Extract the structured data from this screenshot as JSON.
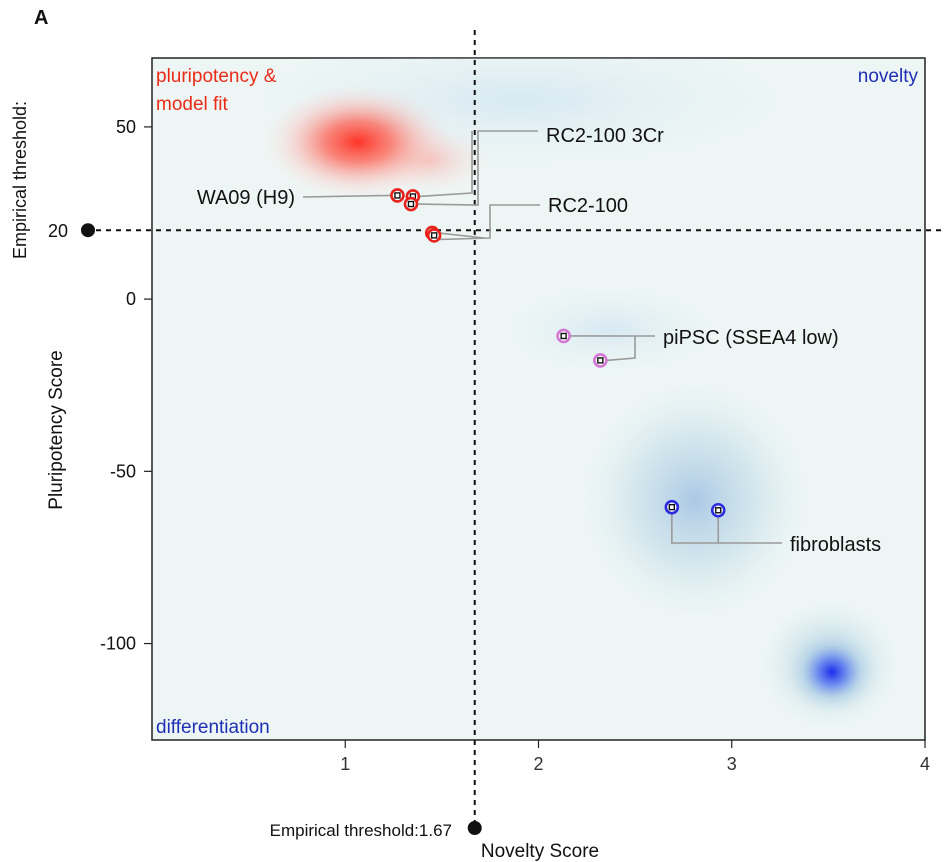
{
  "panel_label": "A",
  "colors": {
    "plot_bg": "#eef6f5",
    "pluripotent": "#e8221b",
    "novel": "#2a2ae0",
    "pipsc": "#d477d4",
    "leader": "#9a9a9a",
    "text": "#111111"
  },
  "chart_data": {
    "type": "scatter",
    "title": "",
    "xlabel": "Novelty Score",
    "ylabel": "Pluripotency  Score",
    "xlim": [
      0,
      4
    ],
    "ylim": [
      -128,
      70
    ],
    "xticks": [
      "1",
      "2",
      "3",
      "4"
    ],
    "yticks": [
      "50",
      "0",
      "-50",
      "-100"
    ],
    "grid": false,
    "thresholds": {
      "x": {
        "value": 1.67,
        "label": "Empirical threshold:1.67"
      },
      "y": {
        "value": 20,
        "label": "Empirical threshold:",
        "tick": "20"
      }
    },
    "quadrant_labels": {
      "top_left": "pluripotency &\nmodel fit",
      "top_right": "novelty",
      "bottom_left": "differentiation"
    },
    "groups": [
      {
        "label": "WA09 (H9)",
        "color": "pluripotent",
        "points": [
          [
            1.27,
            30.1
          ]
        ]
      },
      {
        "label": "RC2-100 3Cr",
        "color": "pluripotent",
        "points": [
          [
            1.35,
            29.8
          ],
          [
            1.34,
            27.6
          ]
        ]
      },
      {
        "label": "RC2-100",
        "color": "pluripotent",
        "points": [
          [
            1.45,
            19.2
          ],
          [
            1.46,
            18.5
          ]
        ]
      },
      {
        "label": "piPSC (SSEA4 low)",
        "color": "pipsc",
        "points": [
          [
            2.13,
            -10.7
          ],
          [
            2.32,
            -17.8
          ]
        ]
      },
      {
        "label": "fibroblasts",
        "color": "novel",
        "points": [
          [
            2.69,
            -60.4
          ],
          [
            2.93,
            -61.3
          ]
        ]
      }
    ]
  }
}
